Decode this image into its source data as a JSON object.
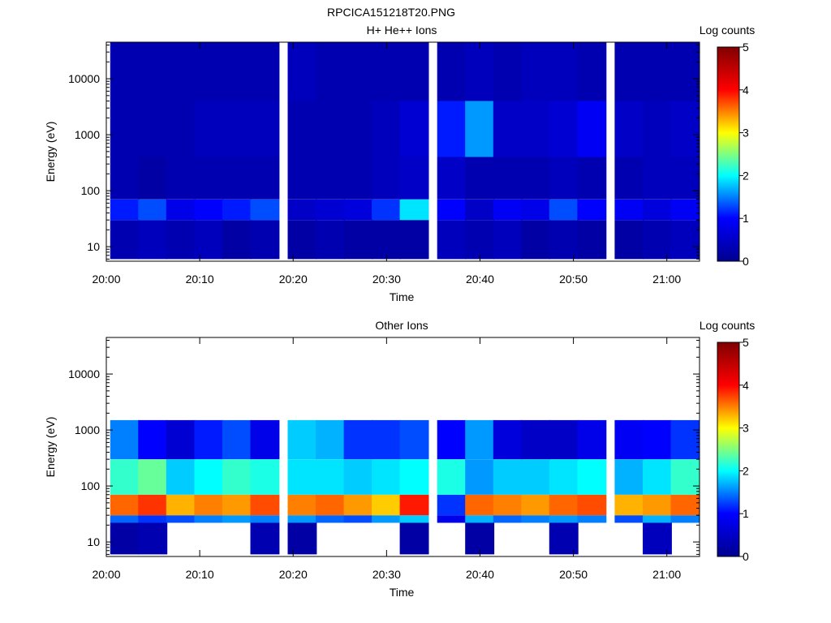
{
  "figure_title": "RPCICA151218T20.PNG",
  "colormap": [
    "#00008f",
    "#0000ff",
    "#00ffff",
    "#ffff00",
    "#ff0000",
    "#800000"
  ],
  "chart_data": [
    {
      "type": "heatmap",
      "title": "H+ He++ Ions",
      "xlabel": "Time",
      "ylabel": "Energy (eV)",
      "x_ticks": [
        "20:00",
        "20:10",
        "20:20",
        "20:30",
        "20:40",
        "20:50",
        "21:00"
      ],
      "y_ticks": [
        "10",
        "100",
        "1000",
        "10000"
      ],
      "y_scale": "log",
      "ylim": [
        5.5,
        45000
      ],
      "colorbar_label": "Log counts",
      "colorbar_ticks": [
        "0",
        "1",
        "2",
        "3",
        "4",
        "5"
      ],
      "clim": [
        0,
        5
      ],
      "time_bins": [
        "20:02",
        "20:05",
        "20:08",
        "20:11",
        "20:14",
        "20:17",
        "20:21",
        "20:24",
        "20:27",
        "20:30",
        "20:33",
        "20:37",
        "20:40",
        "20:43",
        "20:46",
        "20:49",
        "20:52",
        "20:56",
        "20:59",
        "21:02"
      ],
      "energy_bands_eV": [
        {
          "lo": 6,
          "hi": 30,
          "values": [
            0.3,
            0.4,
            0.3,
            0.4,
            0.2,
            0.3,
            0.2,
            0.3,
            0.2,
            0.2,
            0.2,
            0.4,
            0.3,
            0.4,
            0.2,
            0.3,
            0.2,
            0.2,
            0.3,
            0.4
          ]
        },
        {
          "lo": 30,
          "hi": 70,
          "values": [
            1.1,
            1.3,
            0.8,
            1.0,
            1.1,
            1.3,
            0.5,
            0.6,
            0.7,
            1.2,
            1.9,
            1.0,
            0.5,
            0.9,
            0.8,
            1.3,
            1.0,
            0.9,
            0.7,
            0.9
          ]
        },
        {
          "lo": 70,
          "hi": 400,
          "values": [
            0.3,
            0.2,
            0.3,
            0.3,
            0.3,
            0.3,
            0.3,
            0.3,
            0.3,
            0.4,
            0.5,
            0.5,
            0.3,
            0.3,
            0.3,
            0.4,
            0.3,
            0.3,
            0.4,
            0.4
          ]
        },
        {
          "lo": 400,
          "hi": 4000,
          "values": [
            0.3,
            0.3,
            0.3,
            0.4,
            0.4,
            0.4,
            0.3,
            0.3,
            0.3,
            0.4,
            0.6,
            1.1,
            1.6,
            0.5,
            0.5,
            0.6,
            0.9,
            0.5,
            0.4,
            0.5
          ]
        },
        {
          "lo": 4000,
          "hi": 45000,
          "values": [
            0.3,
            0.3,
            0.3,
            0.3,
            0.3,
            0.3,
            0.4,
            0.3,
            0.3,
            0.3,
            0.3,
            0.3,
            0.4,
            0.3,
            0.4,
            0.4,
            0.3,
            0.3,
            0.3,
            0.3
          ]
        }
      ]
    },
    {
      "type": "heatmap",
      "title": "Other Ions",
      "xlabel": "Time",
      "ylabel": "Energy (eV)",
      "x_ticks": [
        "20:00",
        "20:10",
        "20:20",
        "20:30",
        "20:40",
        "20:50",
        "21:00"
      ],
      "y_ticks": [
        "10",
        "100",
        "1000",
        "10000"
      ],
      "y_scale": "log",
      "ylim": [
        5.5,
        45000
      ],
      "colorbar_label": "Log counts",
      "colorbar_ticks": [
        "0",
        "1",
        "2",
        "3",
        "4",
        "5"
      ],
      "clim": [
        0,
        5
      ],
      "time_bins": [
        "20:02",
        "20:05",
        "20:08",
        "20:11",
        "20:14",
        "20:17",
        "20:21",
        "20:24",
        "20:27",
        "20:30",
        "20:33",
        "20:37",
        "20:40",
        "20:43",
        "20:46",
        "20:49",
        "20:52",
        "20:56",
        "20:59",
        "21:02"
      ],
      "energy_bands_eV": [
        {
          "lo": 6,
          "hi": 22,
          "values": [
            0.2,
            0.3,
            0,
            0,
            0,
            0.3,
            0.2,
            0,
            0,
            0,
            0.2,
            0,
            0.2,
            0,
            0,
            0.3,
            0,
            0,
            0.4,
            0
          ]
        },
        {
          "lo": 22,
          "hi": 30,
          "values": [
            1.4,
            1.2,
            1.3,
            1.5,
            1.6,
            1.5,
            1.6,
            1.4,
            1.3,
            1.6,
            1.8,
            0.8,
            1.7,
            1.4,
            1.5,
            1.6,
            1.5,
            1.3,
            1.7,
            1.5
          ]
        },
        {
          "lo": 30,
          "hi": 70,
          "values": [
            3.6,
            3.8,
            3.3,
            3.5,
            3.4,
            3.7,
            3.5,
            3.6,
            3.4,
            3.2,
            3.9,
            1.2,
            3.6,
            3.5,
            3.4,
            3.6,
            3.7,
            3.3,
            3.4,
            3.6
          ]
        },
        {
          "lo": 70,
          "hi": 300,
          "values": [
            2.2,
            2.4,
            1.8,
            2.0,
            2.2,
            2.1,
            1.9,
            1.9,
            1.8,
            1.9,
            2.0,
            2.1,
            1.6,
            1.8,
            1.8,
            1.9,
            2.0,
            1.7,
            1.9,
            2.2
          ]
        },
        {
          "lo": 300,
          "hi": 1500,
          "values": [
            1.5,
            1.0,
            0.6,
            1.1,
            1.3,
            0.8,
            1.8,
            1.7,
            1.2,
            1.2,
            1.3,
            1.0,
            1.6,
            0.7,
            0.5,
            0.5,
            0.8,
            0.9,
            1.0,
            1.2
          ]
        }
      ]
    }
  ]
}
